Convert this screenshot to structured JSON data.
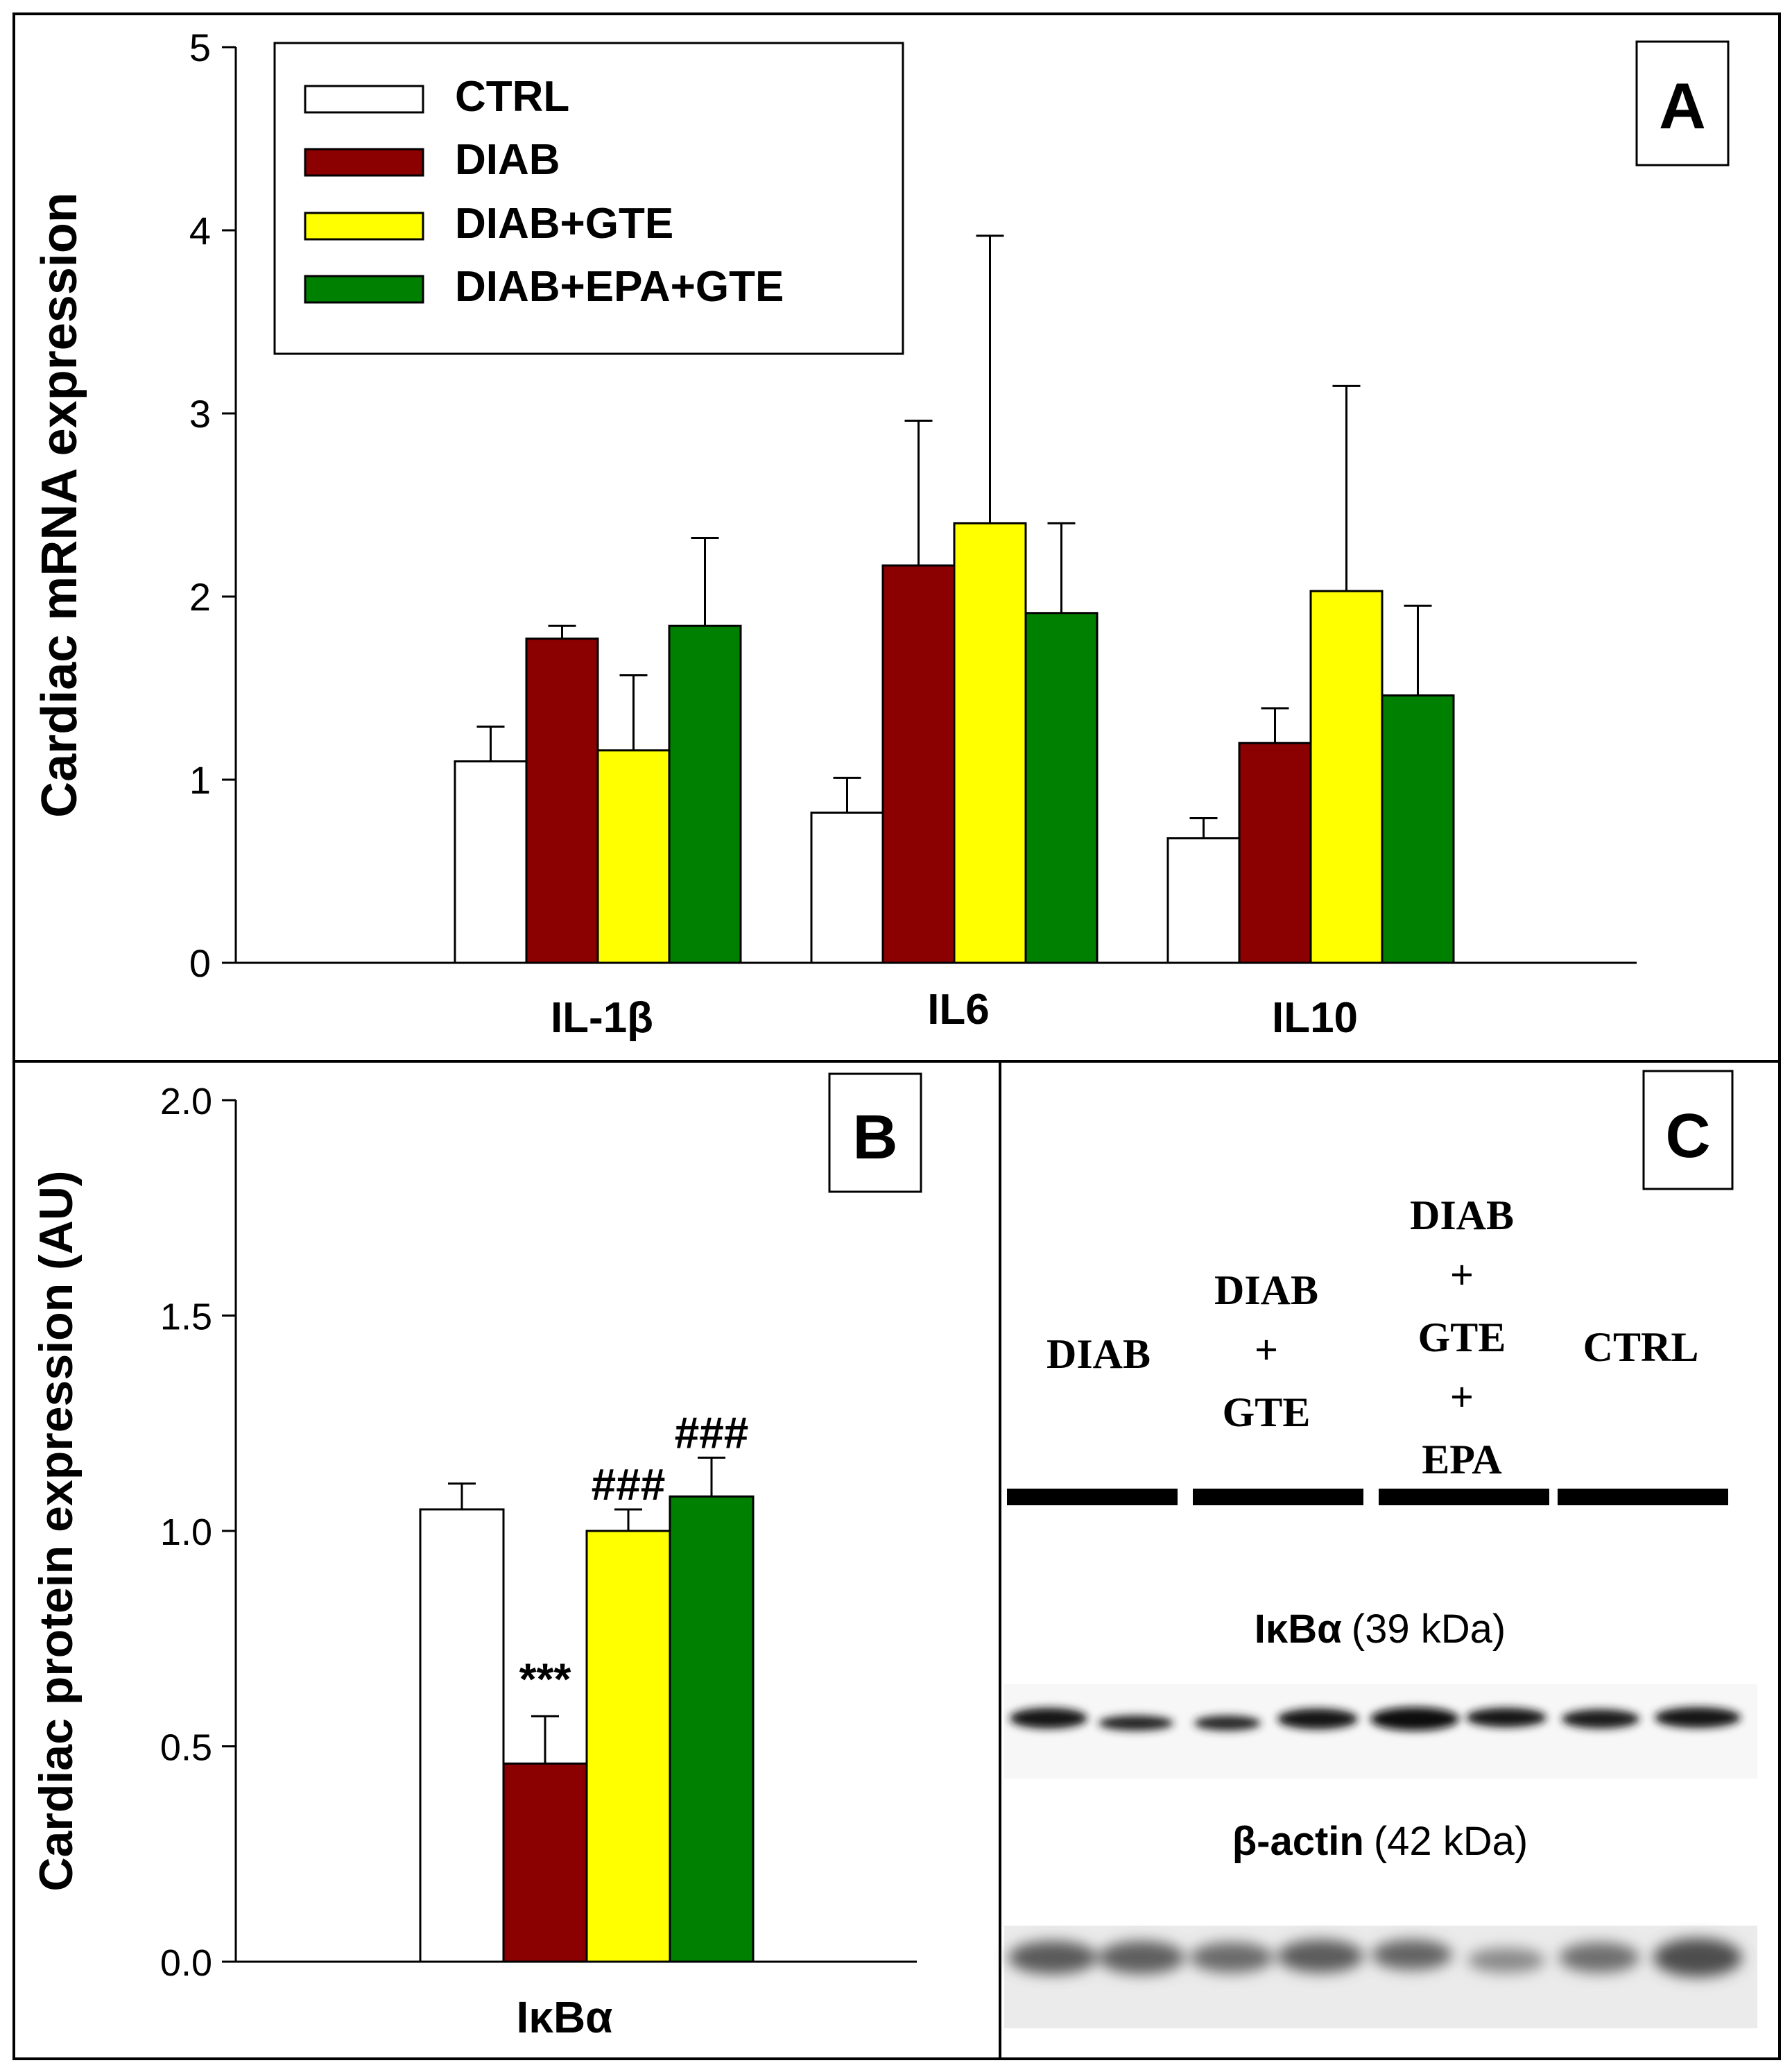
{
  "colors": {
    "CTRL": "#ffffff",
    "DIAB": "#8b0000",
    "DIAB+GTE": "#ffff00",
    "DIAB+EPA+GTE": "#008000"
  },
  "chart_data": [
    {
      "panel": "A",
      "type": "bar",
      "ylabel": "Cardiac mRNA expression",
      "ylim": [
        0,
        5
      ],
      "yticks": [
        "0",
        "1",
        "2",
        "3",
        "4",
        "5"
      ],
      "categories": [
        "IL-1β",
        "IL6",
        "IL10"
      ],
      "legend": [
        "CTRL",
        "DIAB",
        "DIAB+GTE",
        "DIAB+EPA+GTE"
      ],
      "legend_position": "top-left",
      "series": [
        {
          "name": "CTRL",
          "values": [
            1.1,
            0.82,
            0.68
          ],
          "errors": [
            0.19,
            0.19,
            0.11
          ]
        },
        {
          "name": "DIAB",
          "values": [
            1.77,
            2.17,
            1.2
          ],
          "errors": [
            0.07,
            0.79,
            0.19
          ]
        },
        {
          "name": "DIAB+GTE",
          "values": [
            1.16,
            2.4,
            2.03
          ],
          "errors": [
            0.41,
            1.57,
            1.12
          ]
        },
        {
          "name": "DIAB+EPA+GTE",
          "values": [
            1.84,
            1.91,
            1.46
          ],
          "errors": [
            0.48,
            0.49,
            0.49
          ]
        }
      ]
    },
    {
      "panel": "B",
      "type": "bar",
      "ylabel": "Cardiac protein expression (AU)",
      "ylim": [
        0,
        2
      ],
      "yticks": [
        "0.0",
        "0.5",
        "1.0",
        "1.5",
        "2.0"
      ],
      "categories": [
        "IκBα"
      ],
      "series": [
        {
          "name": "CTRL",
          "values": [
            1.05
          ],
          "errors": [
            0.06
          ],
          "annotation": ""
        },
        {
          "name": "DIAB",
          "values": [
            0.46
          ],
          "errors": [
            0.11
          ],
          "annotation": "***"
        },
        {
          "name": "DIAB+GTE",
          "values": [
            1.0
          ],
          "errors": [
            0.05
          ],
          "annotation": "###"
        },
        {
          "name": "DIAB+EPA+GTE",
          "values": [
            1.08
          ],
          "errors": [
            0.09
          ],
          "annotation": "###"
        }
      ]
    }
  ],
  "panels": {
    "A_label": "A",
    "B_label": "B",
    "C_label": "C"
  },
  "blot": {
    "lanes": [
      "DIAB",
      "DIAB\n+\nGTE",
      "DIAB\n+\nGTE\n+\nEPA",
      "CTRL"
    ],
    "lane1": "DIAB",
    "lane2_l1": "DIAB",
    "lane2_l2": "+",
    "lane2_l3": "GTE",
    "lane3_l1": "DIAB",
    "lane3_l2": "+",
    "lane3_l3": "GTE",
    "lane3_l4": "+",
    "lane3_l5": "EPA",
    "lane4": "CTRL",
    "band1_name": "IκBα",
    "band1_size": "(39 kDa)",
    "band2_name": "β-actin",
    "band2_size": "(42 kDa)"
  }
}
